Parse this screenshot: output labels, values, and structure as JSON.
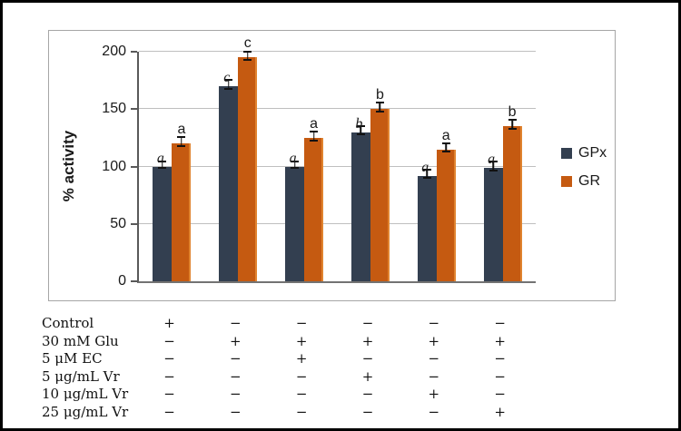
{
  "chart_data": {
    "type": "bar",
    "title": "",
    "xlabel": "",
    "ylabel": "% activity",
    "ylim": [
      0,
      200
    ],
    "yticks": [
      0,
      50,
      100,
      150,
      200
    ],
    "grid": true,
    "legend_position": "right",
    "groups": 6,
    "series": [
      {
        "name": "GPx",
        "color": "#333F50",
        "values": [
          100,
          170,
          100,
          130,
          92,
          99
        ],
        "errors": [
          2,
          3,
          2,
          3,
          3,
          3
        ],
        "letters": [
          "a",
          "c",
          "a",
          "b",
          "a",
          "a"
        ],
        "letters_italic": true
      },
      {
        "name": "GR",
        "color": "#C55A11",
        "values": [
          120,
          195,
          125,
          150,
          115,
          135
        ],
        "errors": [
          3,
          3,
          3,
          3,
          3,
          3
        ],
        "letters": [
          "a",
          "c",
          "a",
          "b",
          "a",
          "b"
        ],
        "letters_italic": false
      }
    ],
    "condition_table": {
      "rows": [
        {
          "label": "Control",
          "signs": [
            "+",
            "−",
            "−",
            "−",
            "−",
            "−"
          ]
        },
        {
          "label": "30 mM Glu",
          "signs": [
            "−",
            "+",
            "+",
            "+",
            "+",
            "+"
          ]
        },
        {
          "label": "5 μM EC",
          "signs": [
            "−",
            "−",
            "+",
            "−",
            "−",
            "−"
          ]
        },
        {
          "label": "5 μg/mL Vr",
          "signs": [
            "−",
            "−",
            "−",
            "+",
            "−",
            "−"
          ]
        },
        {
          "label": "10 μg/mL Vr",
          "signs": [
            "−",
            "−",
            "−",
            "−",
            "+",
            "−"
          ]
        },
        {
          "label": "25 μg/mL Vr",
          "signs": [
            "−",
            "−",
            "−",
            "−",
            "−",
            "+"
          ]
        }
      ]
    },
    "colors": {
      "axis": "#595959",
      "gridline": "#bfbfbf",
      "frame": "#a6a6a6"
    }
  }
}
